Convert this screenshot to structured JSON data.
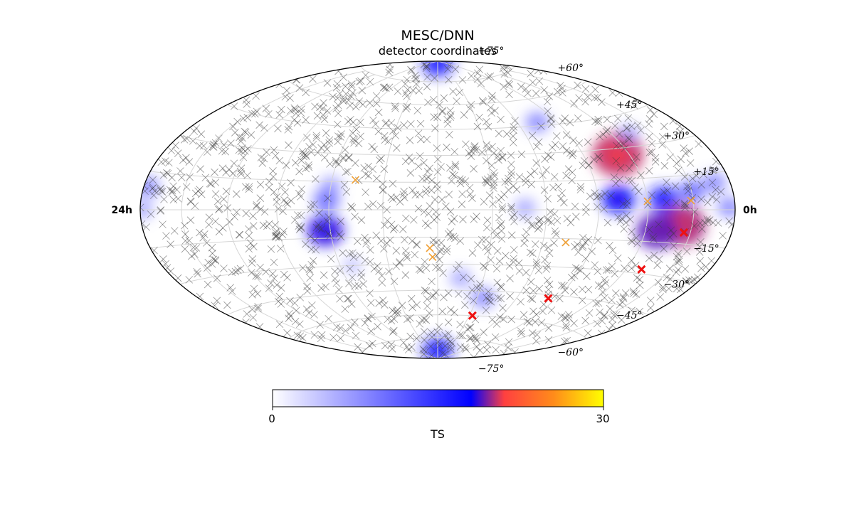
{
  "chart_data": {
    "type": "scatter",
    "projection": "hammer-aitoff (all-sky)",
    "title": "MESC/DNN",
    "subtitle": "detector coordinates",
    "ra_labels": {
      "left": "24h",
      "right": "0h"
    },
    "dec_ticks": [
      {
        "value": 75,
        "label": "+75°"
      },
      {
        "value": 60,
        "label": "+60°"
      },
      {
        "value": 45,
        "label": "+45°"
      },
      {
        "value": 30,
        "label": "+30°"
      },
      {
        "value": 15,
        "label": "+15°"
      },
      {
        "value": -15,
        "label": "−15°"
      },
      {
        "value": -30,
        "label": "−30°"
      },
      {
        "value": -45,
        "label": "−45°"
      },
      {
        "value": -60,
        "label": "−60°"
      },
      {
        "value": -75,
        "label": "−75°"
      }
    ],
    "grid": true,
    "colorbar": {
      "label": "TS",
      "min": 0,
      "max": 30,
      "tick_labels": [
        "0",
        "30"
      ],
      "colors": [
        "#ffffff",
        "#0000ff",
        "#ff4040",
        "#ffff00"
      ]
    },
    "significant_events": [
      {
        "ra_h": 21.7,
        "dec": -10
      },
      {
        "ra_h": 20.7,
        "dec": -28
      },
      {
        "ra_h": 17.6,
        "dec": -47
      },
      {
        "ra_h": 14.2,
        "dec": -60
      }
    ],
    "moderate_events": [
      {
        "ra_h": 21.9,
        "dec": 4
      },
      {
        "ra_h": 20.0,
        "dec": 4
      },
      {
        "ra_h": 16.9,
        "dec": -17
      },
      {
        "ra_h": 11.7,
        "dec": -21
      },
      {
        "ra_h": 11.8,
        "dec": -26
      },
      {
        "ra_h": 8.9,
        "dec": 16
      }
    ],
    "ts_hotspots": [
      {
        "ra_h": 19.5,
        "dec": 27,
        "ts": 16
      },
      {
        "ra_h": 21.5,
        "dec": -7,
        "ts": 15
      },
      {
        "ra_h": 20.5,
        "dec": -10,
        "ts": 12
      },
      {
        "ra_h": 20.7,
        "dec": 5,
        "ts": 8
      },
      {
        "ra_h": 18.8,
        "dec": 5,
        "ts": 9
      },
      {
        "ra_h": 22.0,
        "dec": 8,
        "ts": 6
      },
      {
        "ra_h": 7.8,
        "dec": -11,
        "ts": 10
      },
      {
        "ra_h": 7.9,
        "dec": 5,
        "ts": 6
      },
      {
        "ra_h": 8.0,
        "dec": 13,
        "ts": 4
      },
      {
        "ra_h": 0.2,
        "dec": 9,
        "ts": 5
      },
      {
        "ra_h": 0.1,
        "dec": 0,
        "ts": 4
      },
      {
        "ra_h": 12.0,
        "dec": 88,
        "ts": 8
      },
      {
        "ra_h": 12.0,
        "dec": -84,
        "ts": 8
      },
      {
        "ra_h": 13.0,
        "dec": -38,
        "ts": 4
      },
      {
        "ra_h": 14.3,
        "dec": -49,
        "ts": 5
      },
      {
        "ra_h": 17.0,
        "dec": 47,
        "ts": 5
      },
      {
        "ra_h": 20.8,
        "dec": 36,
        "ts": 4
      },
      {
        "ra_h": 23.7,
        "dec": 1,
        "ts": 5
      },
      {
        "ra_h": 23.2,
        "dec": 11,
        "ts": 5
      },
      {
        "ra_h": 15.2,
        "dec": 1,
        "ts": 4
      },
      {
        "ra_h": 8.5,
        "dec": -30,
        "ts": 3
      }
    ],
    "event_count": 1400
  }
}
